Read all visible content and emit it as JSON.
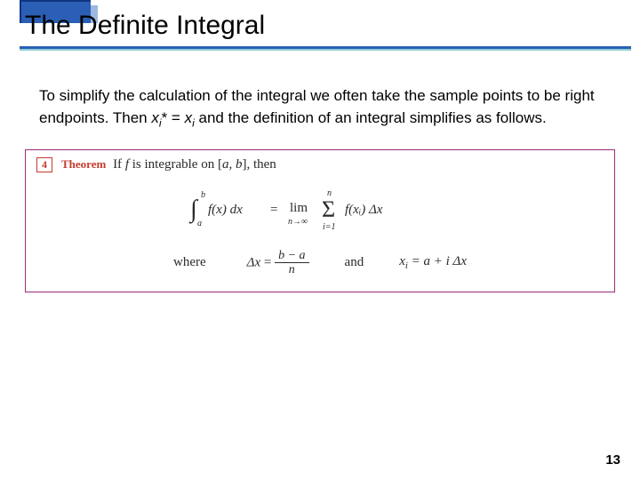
{
  "header": {
    "title": "The Definite Integral",
    "tab_color": "#2b5fb5",
    "tab_border": "#0f3682",
    "tab_shadow": "#9db8e0",
    "underline_primary": "#2b5fb5",
    "underline_secondary": "#8fd0d6",
    "title_fontsize": 30
  },
  "body": {
    "p1_a": "To simplify the calculation of the integral we often take the sample points to be right endpoints. Then ",
    "p1_var1": "x",
    "p1_sub1": "i",
    "p1_star": "*",
    "p1_eq": " = ",
    "p1_var2": "x",
    "p1_sub2": "i",
    "p1_b": " and the definition of an integral simplifies as follows.",
    "fontsize": 17
  },
  "theorem": {
    "number": "4",
    "label": "Theorem",
    "text_a": "If ",
    "text_f": "f",
    "text_b": " is integrable on [",
    "text_ab": "a, b",
    "text_c": "], then",
    "border_color": "#9b2a7a",
    "num_color": "#c63a2e",
    "formula": {
      "lhs_lower": "a",
      "lhs_upper": "b",
      "lhs_integrand": "f(x) dx",
      "eq": "=",
      "lim_label": "lim",
      "lim_sub": "n→∞",
      "sum_lower": "i=1",
      "sum_upper": "n",
      "sum_term": "f(xᵢ) Δx"
    },
    "where_label": "where",
    "dx_lhs": "Δx",
    "dx_eq": "=",
    "dx_num": "b − a",
    "dx_den": "n",
    "and_label": "and",
    "xi_text_a": "x",
    "xi_sub": "i",
    "xi_text_b": " = a + i Δx"
  },
  "page_number": "13",
  "colors": {
    "background": "#ffffff",
    "text": "#000000"
  }
}
